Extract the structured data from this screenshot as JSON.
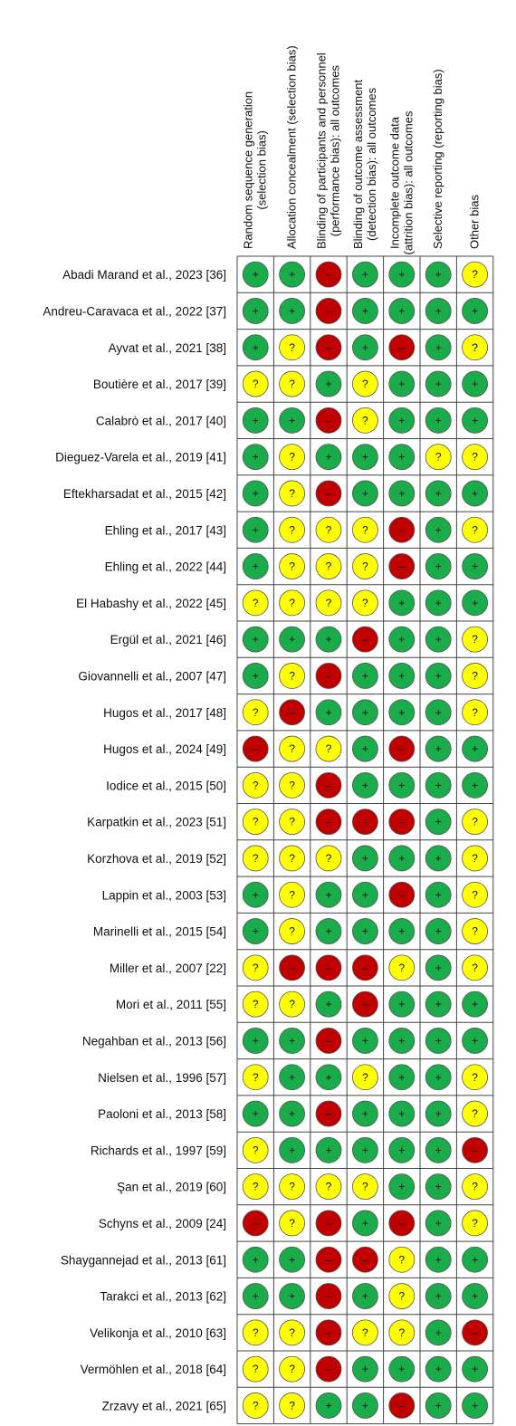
{
  "headers": [
    [
      "Random sequence generation",
      "(selection bias)"
    ],
    [
      "Allocation concealment (selection bias)"
    ],
    [
      "Blinding of participants and personnel",
      "(performance bias): all outcomes"
    ],
    [
      "Blinding of outcome assessment",
      "(detection bias): all outcomes"
    ],
    [
      "Incomplete outcome data",
      "(attrition bias): all outcomes"
    ],
    [
      "Selective reporting (reporting bias)"
    ],
    [
      "Other bias"
    ]
  ],
  "symbol_colors": {
    "+": "#1aab4b",
    "?": "#ffff00",
    "–": "#c00000"
  },
  "rows": [
    {
      "study": "Abadi Marand et al., 2023 [36]",
      "cells": [
        "+",
        "+",
        "–",
        "+",
        "+",
        "+",
        "?"
      ]
    },
    {
      "study": "Andreu-Caravaca et al., 2022 [37]",
      "cells": [
        "+",
        "+",
        "–",
        "+",
        "+",
        "+",
        "+"
      ]
    },
    {
      "study": "Ayvat et al., 2021 [38]",
      "cells": [
        "+",
        "?",
        "–",
        "+",
        "–",
        "+",
        "?"
      ]
    },
    {
      "study": "Boutière et al., 2017 [39]",
      "cells": [
        "?",
        "?",
        "+",
        "?",
        "+",
        "+",
        "+"
      ]
    },
    {
      "study": "Calabrò et al., 2017 [40]",
      "cells": [
        "+",
        "+",
        "–",
        "?",
        "+",
        "+",
        "+"
      ]
    },
    {
      "study": "Dieguez-Varela et al., 2019 [41]",
      "cells": [
        "+",
        "?",
        "+",
        "+",
        "+",
        "?",
        "?"
      ]
    },
    {
      "study": "Eftekharsadat et al., 2015 [42]",
      "cells": [
        "+",
        "?",
        "–",
        "+",
        "+",
        "+",
        "+"
      ]
    },
    {
      "study": "Ehling et al., 2017 [43]",
      "cells": [
        "+",
        "?",
        "?",
        "?",
        "–",
        "+",
        "?"
      ]
    },
    {
      "study": "Ehling et al., 2022 [44]",
      "cells": [
        "+",
        "?",
        "?",
        "?",
        "–",
        "+",
        "+"
      ]
    },
    {
      "study": "El Habashy et al., 2022 [45]",
      "cells": [
        "?",
        "?",
        "?",
        "?",
        "+",
        "+",
        "+"
      ]
    },
    {
      "study": "Ergül et al., 2021 [46]",
      "cells": [
        "+",
        "+",
        "+",
        "–",
        "+",
        "+",
        "?"
      ]
    },
    {
      "study": "Giovannelli et al., 2007 [47]",
      "cells": [
        "+",
        "?",
        "–",
        "+",
        "+",
        "+",
        "?"
      ]
    },
    {
      "study": "Hugos et al., 2017 [48]",
      "cells": [
        "?",
        "–",
        "+",
        "+",
        "+",
        "+",
        "?"
      ]
    },
    {
      "study": "Hugos et al., 2024 [49]",
      "cells": [
        "–",
        "?",
        "?",
        "+",
        "–",
        "+",
        "+"
      ]
    },
    {
      "study": "Iodice et al., 2015 [50]",
      "cells": [
        "?",
        "?",
        "–",
        "+",
        "+",
        "+",
        "+"
      ]
    },
    {
      "study": "Karpatkin et al., 2023 [51]",
      "cells": [
        "?",
        "?",
        "–",
        "–",
        "–",
        "+",
        "?"
      ]
    },
    {
      "study": "Korzhova et al., 2019 [52]",
      "cells": [
        "?",
        "?",
        "?",
        "+",
        "+",
        "+",
        "?"
      ]
    },
    {
      "study": "Lappin et al., 2003 [53]",
      "cells": [
        "+",
        "?",
        "+",
        "+",
        "–",
        "+",
        "?"
      ]
    },
    {
      "study": "Marinelli et al., 2015 [54]",
      "cells": [
        "+",
        "?",
        "+",
        "+",
        "+",
        "+",
        "?"
      ]
    },
    {
      "study": "Miller et al., 2007 [22]",
      "cells": [
        "?",
        "–",
        "–",
        "–",
        "?",
        "+",
        "?"
      ]
    },
    {
      "study": "Mori et al., 2011 [55]",
      "cells": [
        "?",
        "?",
        "+",
        "–",
        "+",
        "+",
        "+"
      ]
    },
    {
      "study": "Negahban et al., 2013 [56]",
      "cells": [
        "+",
        "+",
        "–",
        "+",
        "+",
        "+",
        "+"
      ]
    },
    {
      "study": "Nielsen et al., 1996 [57]",
      "cells": [
        "?",
        "+",
        "+",
        "?",
        "+",
        "+",
        "?"
      ]
    },
    {
      "study": "Paoloni et al., 2013 [58]",
      "cells": [
        "+",
        "+",
        "–",
        "+",
        "+",
        "+",
        "?"
      ]
    },
    {
      "study": "Richards et al., 1997 [59]",
      "cells": [
        "?",
        "+",
        "+",
        "+",
        "+",
        "+",
        "–"
      ]
    },
    {
      "study": "Şan et al., 2019 [60]",
      "cells": [
        "?",
        "?",
        "?",
        "?",
        "+",
        "+",
        "?"
      ]
    },
    {
      "study": "Schyns et al., 2009 [24]",
      "cells": [
        "–",
        "?",
        "–",
        "+",
        "–",
        "+",
        "?"
      ]
    },
    {
      "study": "Shaygannejad et al., 2013 [61]",
      "cells": [
        "+",
        "+",
        "–",
        "–",
        "?",
        "+",
        "+"
      ]
    },
    {
      "study": "Tarakci et al., 2013 [62]",
      "cells": [
        "+",
        "+",
        "–",
        "+",
        "?",
        "+",
        "+"
      ]
    },
    {
      "study": "Velikonja et al., 2010 [63]",
      "cells": [
        "?",
        "?",
        "–",
        "?",
        "?",
        "+",
        "–"
      ]
    },
    {
      "study": "Vermöhlen et al., 2018 [64]",
      "cells": [
        "?",
        "?",
        "–",
        "+",
        "+",
        "+",
        "+"
      ]
    },
    {
      "study": "Zrzavy et al., 2021 [65]",
      "cells": [
        "?",
        "?",
        "+",
        "+",
        "–",
        "+",
        "+"
      ]
    }
  ]
}
